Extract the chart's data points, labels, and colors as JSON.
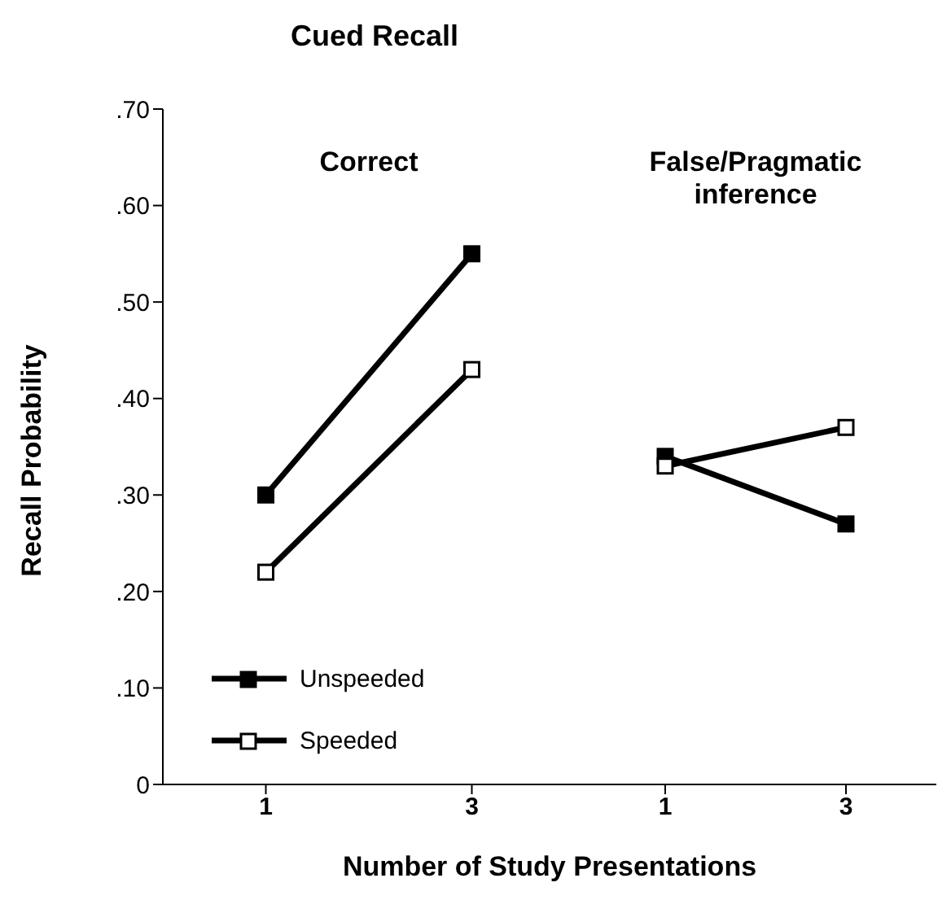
{
  "chart_data": [
    {
      "type": "line",
      "title": "Cued Recall",
      "subtitle": "Correct",
      "xlabel": "Number of Study Presentations",
      "ylabel": "Recall Probability",
      "categories": [
        "1",
        "3"
      ],
      "series": [
        {
          "name": "Unspeeded",
          "color": "#000000",
          "values": [
            0.3,
            0.55
          ]
        },
        {
          "name": "Speeded",
          "color": "#000000",
          "values": [
            0.22,
            0.43
          ]
        }
      ],
      "ylim": [
        0,
        0.7
      ],
      "yticks": [
        0,
        {
          "value": 0.1,
          "label": ".10"
        },
        {
          "value": 0.2,
          "label": ".20"
        },
        {
          "value": 0.3,
          "label": ".30"
        },
        {
          "value": 0.4,
          "label": ".40"
        },
        {
          "value": 0.5,
          "label": ".50"
        },
        {
          "value": 0.6,
          "label": ".60"
        },
        {
          "value": 0.7,
          "label": ".70"
        }
      ],
      "marker": "square",
      "line_style": "solid",
      "legend": "bottom left",
      "grid": false
    },
    {
      "type": "line",
      "subtitle": "False/Pragmatic inference",
      "categories": [
        "1",
        "3"
      ],
      "series": [
        {
          "color": "#000000",
          "values": [
            0.34,
            0.27
          ]
        },
        {
          "color": "#000000",
          "values": [
            0.33,
            0.37
          ]
        }
      ],
      "ylim": [
        0,
        0.7
      ],
      "marker": "square",
      "line_style": "solid",
      "tick_labels": "x",
      "grid": false
    }
  ]
}
